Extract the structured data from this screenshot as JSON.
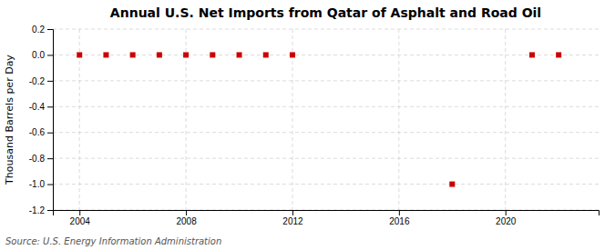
{
  "chart_data": {
    "type": "scatter",
    "title": "Annual U.S. Net Imports from Qatar of Asphalt and Road Oil",
    "ylabel": "Thousand Barrels per Day",
    "annotations": [
      "Source: U.S. Energy Information Administration"
    ],
    "x": [
      2004,
      2005,
      2006,
      2007,
      2008,
      2009,
      2010,
      2011,
      2012,
      2018,
      2021,
      2022
    ],
    "values": [
      0.0,
      0.0,
      0.0,
      0.0,
      0.0,
      0.0,
      0.0,
      0.0,
      0.0,
      -1.0,
      0.0,
      0.0
    ],
    "color": "#cc0000",
    "marker": "square",
    "xlim": [
      2003.0,
      2023.5
    ],
    "xticks": [
      2004,
      2008,
      2012,
      2016,
      2020
    ],
    "ylim": [
      -1.2,
      0.2
    ],
    "yticks": [
      0.2,
      {
        "value": 0.0,
        "label": "0.0"
      },
      -0.2,
      -0.4,
      -0.6,
      -0.8,
      {
        "value": -1.0,
        "label": "-1.0"
      },
      -1.2
    ],
    "grid": true
  }
}
